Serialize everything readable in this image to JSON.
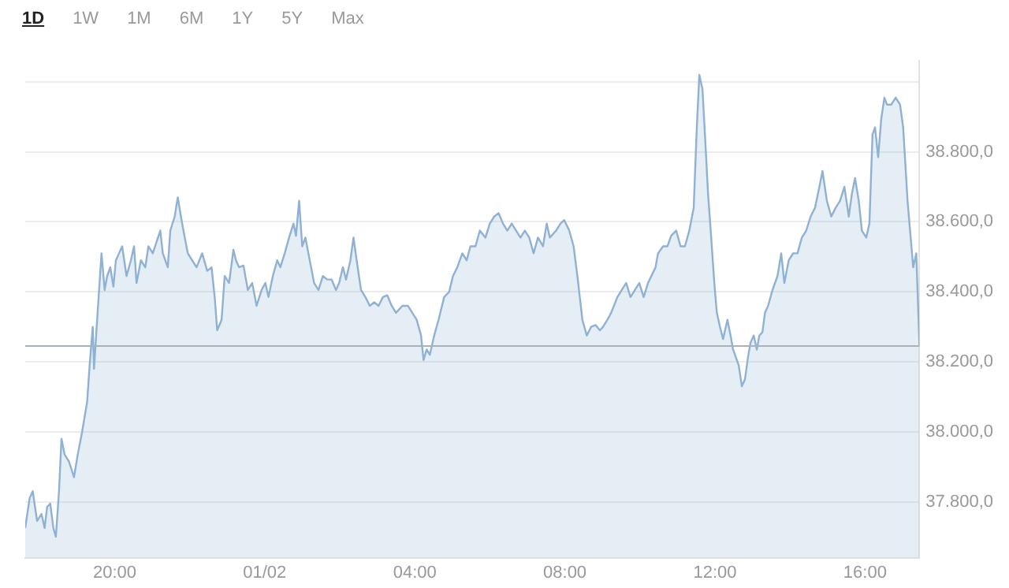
{
  "chart_data": {
    "type": "area",
    "annotations": [
      "1D",
      "1W",
      "1M",
      "6M",
      "1Y",
      "5Y",
      "Max"
    ],
    "x": [
      "--01-31T17:37",
      "--01-31T17:44",
      "--01-31T17:49",
      "--01-31T17:56",
      "--01-31T18:03",
      "--01-31T18:08",
      "--01-31T18:12",
      "--01-31T18:17",
      "--01-31T18:22",
      "--01-31T18:26",
      "--01-31T18:31",
      "--01-31T18:35",
      "--01-31T18:40",
      "--01-31T18:47",
      "--01-31T18:55",
      "--01-31T19:01",
      "--01-31T19:08",
      "--01-31T19:16",
      "--01-31T19:20",
      "--01-31T19:25",
      "--01-31T19:27",
      "--01-31T19:32",
      "--01-31T19:39",
      "--01-31T19:44",
      "--01-31T19:48",
      "--01-31T19:53",
      "--01-31T19:58",
      "--01-31T20:02",
      "--01-31T20:07",
      "--01-31T20:12",
      "--01-31T20:19",
      "--01-31T20:26",
      "--01-31T20:31",
      "--01-31T20:35",
      "--01-31T20:42",
      "--01-31T20:49",
      "--01-31T20:54",
      "--01-31T21:01",
      "--01-31T21:13",
      "--01-31T21:17",
      "--01-31T21:25",
      "--01-31T21:29",
      "--01-31T21:36",
      "--01-31T21:41",
      "--01-31T21:46",
      "--01-31T21:50",
      "--01-31T21:57",
      "--01-31T22:04",
      "--01-31T22:11",
      "--01-31T22:20",
      "--01-31T22:28",
      "--01-31T22:35",
      "--01-31T22:40",
      "--01-31T22:44",
      "--01-31T22:51",
      "--01-31T22:56",
      "--01-31T23:03",
      "--01-31T23:10",
      "--01-31T23:14",
      "--01-31T23:19",
      "--01-31T23:26",
      "--01-31T23:33",
      "--01-31T23:40",
      "--01-31T23:47",
      "--01-31T23:55",
      "--02-01T00:01",
      "--02-01T00:06",
      "--02-01T00:13",
      "--02-01T00:20",
      "--02-01T00:25",
      "--02-01T00:32",
      "--02-01T00:39",
      "--02-01T00:46",
      "--02-01T00:50",
      "--02-01T00:55",
      "--02-01T01:00",
      "--02-01T01:05",
      "--02-01T01:12",
      "--02-01T01:19",
      "--02-01T01:26",
      "--02-01T01:33",
      "--02-01T01:40",
      "--02-01T01:47",
      "--02-01T01:54",
      "--02-01T01:59",
      "--02-01T02:05",
      "--02-01T02:10",
      "--02-01T02:17",
      "--02-01T02:22",
      "--02-01T02:27",
      "--02-01T02:34",
      "--02-01T02:41",
      "--02-01T02:48",
      "--02-01T02:55",
      "--02-01T03:02",
      "--02-01T03:09",
      "--02-01T03:16",
      "--02-01T03:23",
      "--02-01T03:30",
      "--02-01T03:40",
      "--02-01T03:49",
      "--02-01T03:56",
      "--02-01T04:03",
      "--02-01T04:10",
      "--02-01T04:14",
      "--02-01T04:19",
      "--02-01T04:24",
      "--02-01T04:31",
      "--02-01T04:38",
      "--02-01T04:47",
      "--02-01T04:55",
      "--02-01T05:01",
      "--02-01T05:08",
      "--02-01T05:16",
      "--02-01T05:23",
      "--02-01T05:29",
      "--02-01T05:37",
      "--02-01T05:44",
      "--02-01T05:53",
      "--02-01T06:00",
      "--02-01T06:07",
      "--02-01T06:14",
      "--02-01T06:21",
      "--02-01T06:28",
      "--02-01T06:35",
      "--02-01T06:42",
      "--02-01T06:49",
      "--02-01T06:56",
      "--02-01T07:03",
      "--02-01T07:10",
      "--02-01T07:17",
      "--02-01T07:25",
      "--02-01T07:31",
      "--02-01T07:36",
      "--02-01T07:46",
      "--02-01T07:53",
      "--02-01T07:59",
      "--02-01T08:07",
      "--02-01T08:14",
      "--02-01T08:20",
      "--02-01T08:28",
      "--02-01T08:35",
      "--02-01T08:42",
      "--02-01T08:49",
      "--02-01T08:56",
      "--02-01T09:01",
      "--02-01T09:08",
      "--02-01T09:14",
      "--02-01T09:24",
      "--02-01T09:31",
      "--02-01T09:38",
      "--02-01T09:45",
      "--02-01T09:52",
      "--02-01T09:59",
      "--02-01T10:06",
      "--02-01T10:13",
      "--02-01T10:25",
      "--02-01T10:29",
      "--02-01T10:37",
      "--02-01T10:44",
      "--02-01T10:50",
      "--02-01T10:58",
      "--02-01T11:05",
      "--02-01T11:12",
      "--02-01T11:19",
      "--02-01T11:26",
      "--02-01T11:31",
      "--02-01T11:35",
      "--02-01T11:40",
      "--02-01T11:44",
      "--02-01T11:49",
      "--02-01T11:54",
      "--02-01T11:59",
      "--02-01T12:03",
      "--02-01T12:08",
      "--02-01T12:13",
      "--02-01T12:20",
      "--02-01T12:25",
      "--02-01T12:29",
      "--02-01T12:38",
      "--02-01T12:43",
      "--02-01T12:48",
      "--02-01T12:53",
      "--02-01T12:57",
      "--02-01T13:02",
      "--02-01T13:07",
      "--02-01T13:11",
      "--02-01T13:16",
      "--02-01T13:20",
      "--02-01T13:25",
      "--02-01T13:32",
      "--02-01T13:40",
      "--02-01T13:46",
      "--02-01T13:51",
      "--02-01T13:58",
      "--02-01T14:05",
      "--02-01T14:12",
      "--02-01T14:19",
      "--02-01T14:26",
      "--02-01T14:33",
      "--02-01T14:40",
      "--02-01T14:47",
      "--02-01T14:52",
      "--02-01T14:59",
      "--02-01T15:06",
      "--02-01T15:13",
      "--02-01T15:20",
      "--02-01T15:27",
      "--02-01T15:34",
      "--02-01T15:39",
      "--02-01T15:44",
      "--02-01T15:50",
      "--02-01T15:55",
      "--02-01T16:02",
      "--02-01T16:07",
      "--02-01T16:12",
      "--02-01T16:16",
      "--02-01T16:21",
      "--02-01T16:26",
      "--02-01T16:31",
      "--02-01T16:35",
      "--02-01T16:42",
      "--02-01T16:49",
      "--02-01T16:56",
      "--02-01T17:01",
      "--02-01T17:08",
      "--02-01T17:13",
      "--02-01T17:17",
      "--02-01T17:22",
      "--02-01T17:27"
    ],
    "series": [
      {
        "color": "#8fb1d3",
        "values": [
          37725,
          37810,
          37830,
          37745,
          37765,
          37725,
          37785,
          37795,
          37725,
          37700,
          37830,
          37980,
          37935,
          37915,
          37870,
          37935,
          38000,
          38085,
          38190,
          38300,
          38180,
          38320,
          38510,
          38405,
          38445,
          38470,
          38415,
          38490,
          38510,
          38530,
          38445,
          38490,
          38530,
          38425,
          38490,
          38470,
          38530,
          38510,
          38575,
          38510,
          38470,
          38575,
          38615,
          38670,
          38615,
          38575,
          38510,
          38490,
          38470,
          38510,
          38460,
          38470,
          38385,
          38290,
          38320,
          38445,
          38425,
          38520,
          38490,
          38470,
          38475,
          38405,
          38425,
          38360,
          38405,
          38425,
          38385,
          38445,
          38490,
          38470,
          38510,
          38555,
          38595,
          38560,
          38660,
          38530,
          38555,
          38490,
          38425,
          38405,
          38445,
          38435,
          38435,
          38405,
          38425,
          38470,
          38435,
          38490,
          38555,
          38490,
          38405,
          38385,
          38360,
          38370,
          38360,
          38385,
          38390,
          38360,
          38340,
          38360,
          38360,
          38340,
          38320,
          38275,
          38205,
          38235,
          38220,
          38275,
          38320,
          38385,
          38400,
          38445,
          38470,
          38510,
          38490,
          38530,
          38530,
          38575,
          38555,
          38595,
          38615,
          38625,
          38595,
          38575,
          38595,
          38575,
          38555,
          38575,
          38555,
          38510,
          38555,
          38530,
          38595,
          38555,
          38575,
          38595,
          38605,
          38575,
          38530,
          38445,
          38320,
          38275,
          38300,
          38305,
          38290,
          38300,
          38320,
          38340,
          38385,
          38405,
          38425,
          38385,
          38405,
          38425,
          38385,
          38425,
          38470,
          38510,
          38530,
          38530,
          38560,
          38575,
          38530,
          38530,
          38575,
          38640,
          38870,
          39020,
          38980,
          38850,
          38680,
          38555,
          38425,
          38340,
          38300,
          38265,
          38320,
          38275,
          38235,
          38190,
          38130,
          38150,
          38215,
          38255,
          38275,
          38235,
          38275,
          38285,
          38340,
          38360,
          38405,
          38445,
          38510,
          38425,
          38490,
          38510,
          38510,
          38555,
          38575,
          38615,
          38640,
          38700,
          38745,
          38660,
          38615,
          38640,
          38660,
          38700,
          38615,
          38680,
          38725,
          38660,
          38575,
          38555,
          38595,
          38850,
          38870,
          38785,
          38895,
          38955,
          38935,
          38935,
          38955,
          38935,
          38870,
          38660,
          38555,
          38470,
          38510,
          38245
        ]
      }
    ],
    "xlim": [
      "--01-31T17:37",
      "--02-01T17:27"
    ],
    "xticks": [
      {
        "value": "--01-31T20:00",
        "label": "20:00"
      },
      {
        "value": "--02-01T00:00",
        "label": "01/02"
      },
      {
        "value": "--02-01T04:00",
        "label": "04:00"
      },
      {
        "value": "--02-01T08:00",
        "label": "08:00"
      },
      {
        "value": "--02-01T12:00",
        "label": "12:00"
      },
      {
        "value": "--02-01T16:00",
        "label": "16:00"
      }
    ],
    "ylim": [
      37640,
      39060
    ],
    "yticks": [
      {
        "value": 37800,
        "label": "37.800,0"
      },
      {
        "value": 38000,
        "label": "38.000,0"
      },
      {
        "value": 38200,
        "label": "38.200,0"
      },
      {
        "value": 38400,
        "label": "38.400,0"
      },
      {
        "value": 38600,
        "label": "38.600,0"
      },
      {
        "value": 38800,
        "label": "38.800,0"
      },
      {
        "value": 39000,
        "label": null
      }
    ],
    "ref_lines": [
      {
        "axis": "y",
        "value": 38245,
        "color": "#a8b0b8"
      }
    ],
    "grid": "y",
    "legend": false,
    "marker": "none",
    "line_style": "solid"
  }
}
